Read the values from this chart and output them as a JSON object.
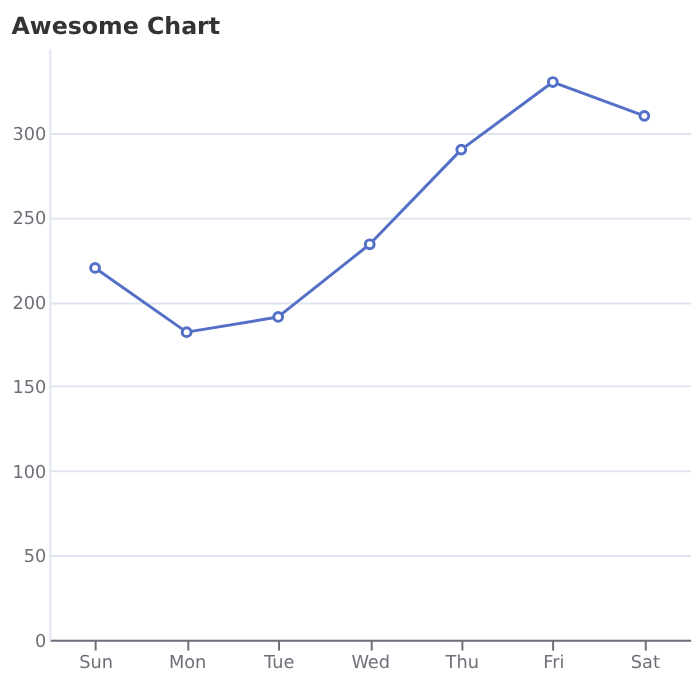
{
  "chart_data": {
    "type": "line",
    "title": "Awesome Chart",
    "categories": [
      "Sun",
      "Mon",
      "Tue",
      "Wed",
      "Thu",
      "Fri",
      "Sat"
    ],
    "series": [
      {
        "color": "#5470c6",
        "values": [
          220,
          182,
          191,
          234,
          290,
          330,
          310
        ]
      }
    ],
    "ylim": [
      0,
      350
    ],
    "yticks": [
      0,
      50,
      100,
      150,
      200,
      250,
      300
    ],
    "grid": "y",
    "marker": "circle",
    "line_style": "solid"
  }
}
